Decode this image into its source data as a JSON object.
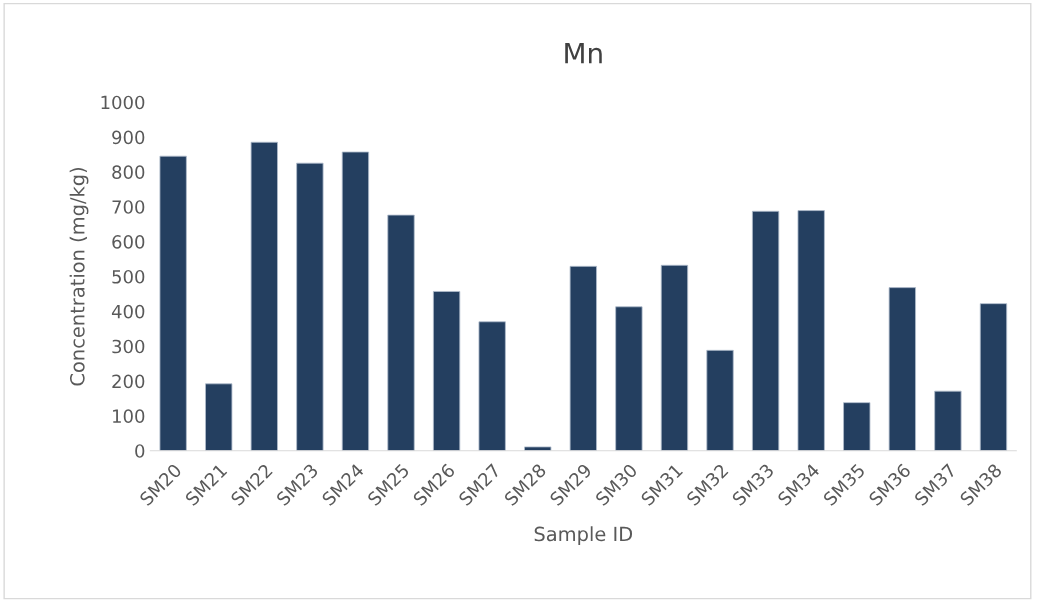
{
  "chart_data": {
    "type": "bar",
    "title": "Mn",
    "xlabel": "Sample ID",
    "ylabel": "Concentration (mg/kg)",
    "categories": [
      "SM20",
      "SM21",
      "SM22",
      "SM23",
      "SM24",
      "SM25",
      "SM26",
      "SM27",
      "SM28",
      "SM29",
      "SM30",
      "SM31",
      "SM32",
      "SM33",
      "SM34",
      "SM35",
      "SM36",
      "SM37",
      "SM38"
    ],
    "values": [
      845,
      192,
      885,
      825,
      857,
      676,
      457,
      370,
      11,
      529,
      413,
      532,
      288,
      687,
      689,
      138,
      468,
      171,
      422
    ],
    "color": "#243f60",
    "ylim": [
      0,
      1000
    ],
    "yticks": [
      0,
      100,
      200,
      300,
      400,
      500,
      600,
      700,
      800,
      900,
      1000
    ],
    "grid": false
  }
}
